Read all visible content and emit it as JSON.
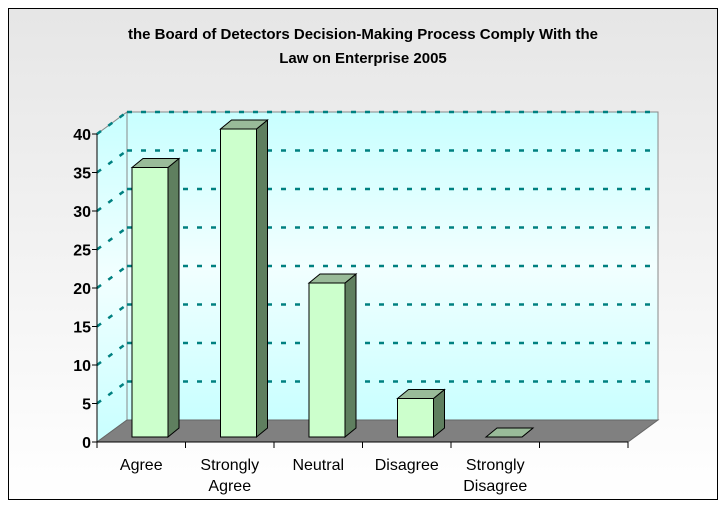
{
  "chart_data": {
    "type": "bar",
    "title_lines": [
      "the Board of Detectors Decision-Making Process Comply With the",
      "Law on Enterprise 2005"
    ],
    "categories": [
      [
        "Agree"
      ],
      [
        "Strongly",
        "Agree"
      ],
      [
        "Neutral"
      ],
      [
        "Disagree"
      ],
      [
        "Strongly",
        "Disagree"
      ]
    ],
    "values": [
      35,
      40,
      20,
      5,
      0
    ],
    "ylim": [
      0,
      40
    ],
    "yticks": [
      0,
      5,
      10,
      15,
      20,
      25,
      30,
      35,
      40
    ],
    "grid": true,
    "legend": "none",
    "colors": {
      "bar_front": "#ccffcc",
      "bar_top": "#99bb99",
      "bar_side": "#5f7f5f",
      "grid": "#008080",
      "floor": "#808080"
    }
  }
}
